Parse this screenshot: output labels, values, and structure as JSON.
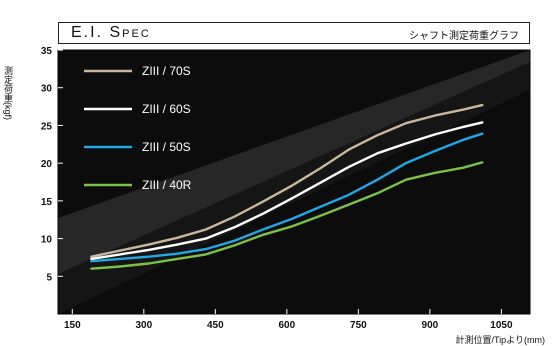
{
  "header": {
    "title": "E.I. Spec",
    "subtitle": "シャフト測定荷重グラフ"
  },
  "colors": {
    "background_dark": "#0c0c0c",
    "background_light": "#3a3a3a",
    "series": [
      "#c8b79c",
      "#ffffff",
      "#22a6e6",
      "#7cc247"
    ]
  },
  "chart_data": {
    "type": "line",
    "title": "E.I. Spec",
    "subtitle": "シャフト測定荷重グラフ",
    "xlabel": "計測位置/Tipより(mm)",
    "ylabel": "測定荷重(kgf)",
    "xlim": [
      120,
      1110
    ],
    "ylim": [
      0,
      35
    ],
    "xticks": [
      150,
      300,
      450,
      600,
      750,
      900,
      1050
    ],
    "yticks": [
      5,
      10,
      15,
      20,
      25,
      30,
      35
    ],
    "grid": false,
    "legend": "top-left",
    "x": [
      190,
      250,
      310,
      370,
      430,
      490,
      550,
      610,
      670,
      730,
      790,
      850,
      910,
      970,
      1010
    ],
    "series": [
      {
        "name": "ZIII / 70S",
        "values": [
          7.6,
          8.4,
          9.2,
          10.1,
          11.2,
          12.9,
          14.9,
          17.0,
          19.3,
          21.8,
          23.7,
          25.3,
          26.3,
          27.1,
          27.7
        ]
      },
      {
        "name": "ZIII / 60S",
        "values": [
          7.3,
          7.9,
          8.5,
          9.2,
          10.0,
          11.5,
          13.3,
          15.3,
          17.4,
          19.5,
          21.3,
          22.6,
          23.8,
          24.8,
          25.4
        ]
      },
      {
        "name": "ZIII / 50S",
        "values": [
          7.0,
          7.3,
          7.6,
          8.0,
          8.6,
          9.7,
          11.2,
          12.6,
          14.2,
          15.8,
          17.8,
          20.0,
          21.6,
          23.1,
          23.9
        ]
      },
      {
        "name": "ZIII / 40R",
        "values": [
          6.0,
          6.3,
          6.7,
          7.3,
          7.9,
          9.1,
          10.5,
          11.6,
          13.0,
          14.5,
          16.0,
          17.8,
          18.7,
          19.4,
          20.1
        ]
      }
    ]
  }
}
